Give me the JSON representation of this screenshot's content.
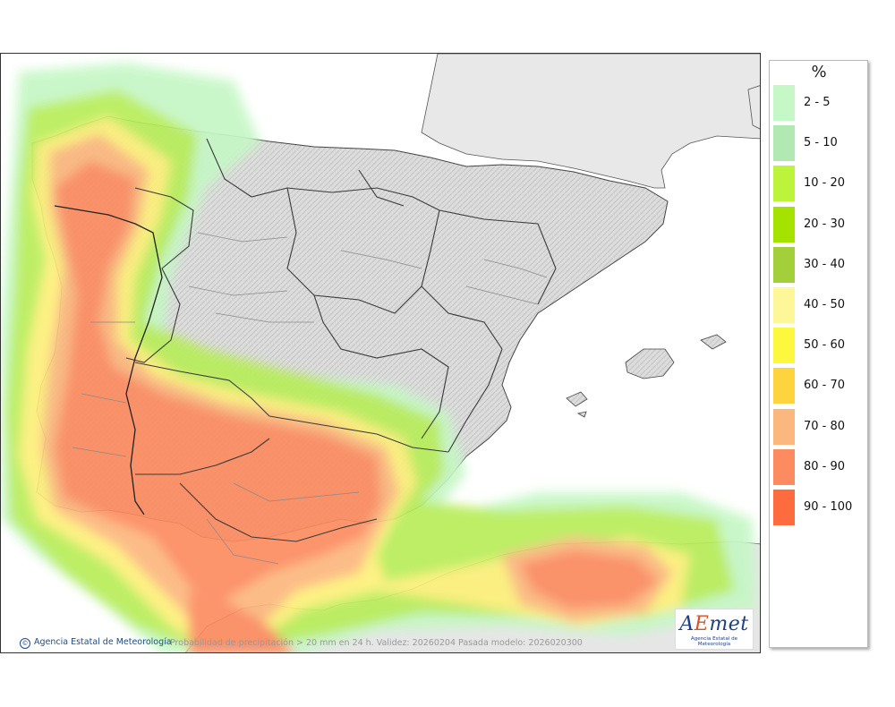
{
  "map": {
    "footer_agency": "Agencia Estatal de Meteorología",
    "footer_copyright": "©",
    "caption": "Probabilidad de precipitación > 20 mm en 24 h. Validez: 20260204 Pasada modelo: 2026020300",
    "logo_brand_a": "A",
    "logo_brand_e": "E",
    "logo_brand_rest": "met",
    "logo_sub": "Agencia Estatal de Meteorología"
  },
  "legend": {
    "title": "%",
    "items": [
      {
        "label": "2 - 5",
        "color": "#c6f7c6"
      },
      {
        "label": "5 - 10",
        "color": "#b2e8b2"
      },
      {
        "label": "10 - 20",
        "color": "#bdf33a"
      },
      {
        "label": "20 - 30",
        "color": "#a5e200"
      },
      {
        "label": "30 - 40",
        "color": "#a3cf3a"
      },
      {
        "label": "40 - 50",
        "color": "#fef79a"
      },
      {
        "label": "50 - 60",
        "color": "#fdf73e"
      },
      {
        "label": "60 - 70",
        "color": "#fdd33e"
      },
      {
        "label": "70 - 80",
        "color": "#fcb77e"
      },
      {
        "label": "80 - 90",
        "color": "#fc8b60"
      },
      {
        "label": "90 - 100",
        "color": "#fd6b3e"
      }
    ]
  }
}
